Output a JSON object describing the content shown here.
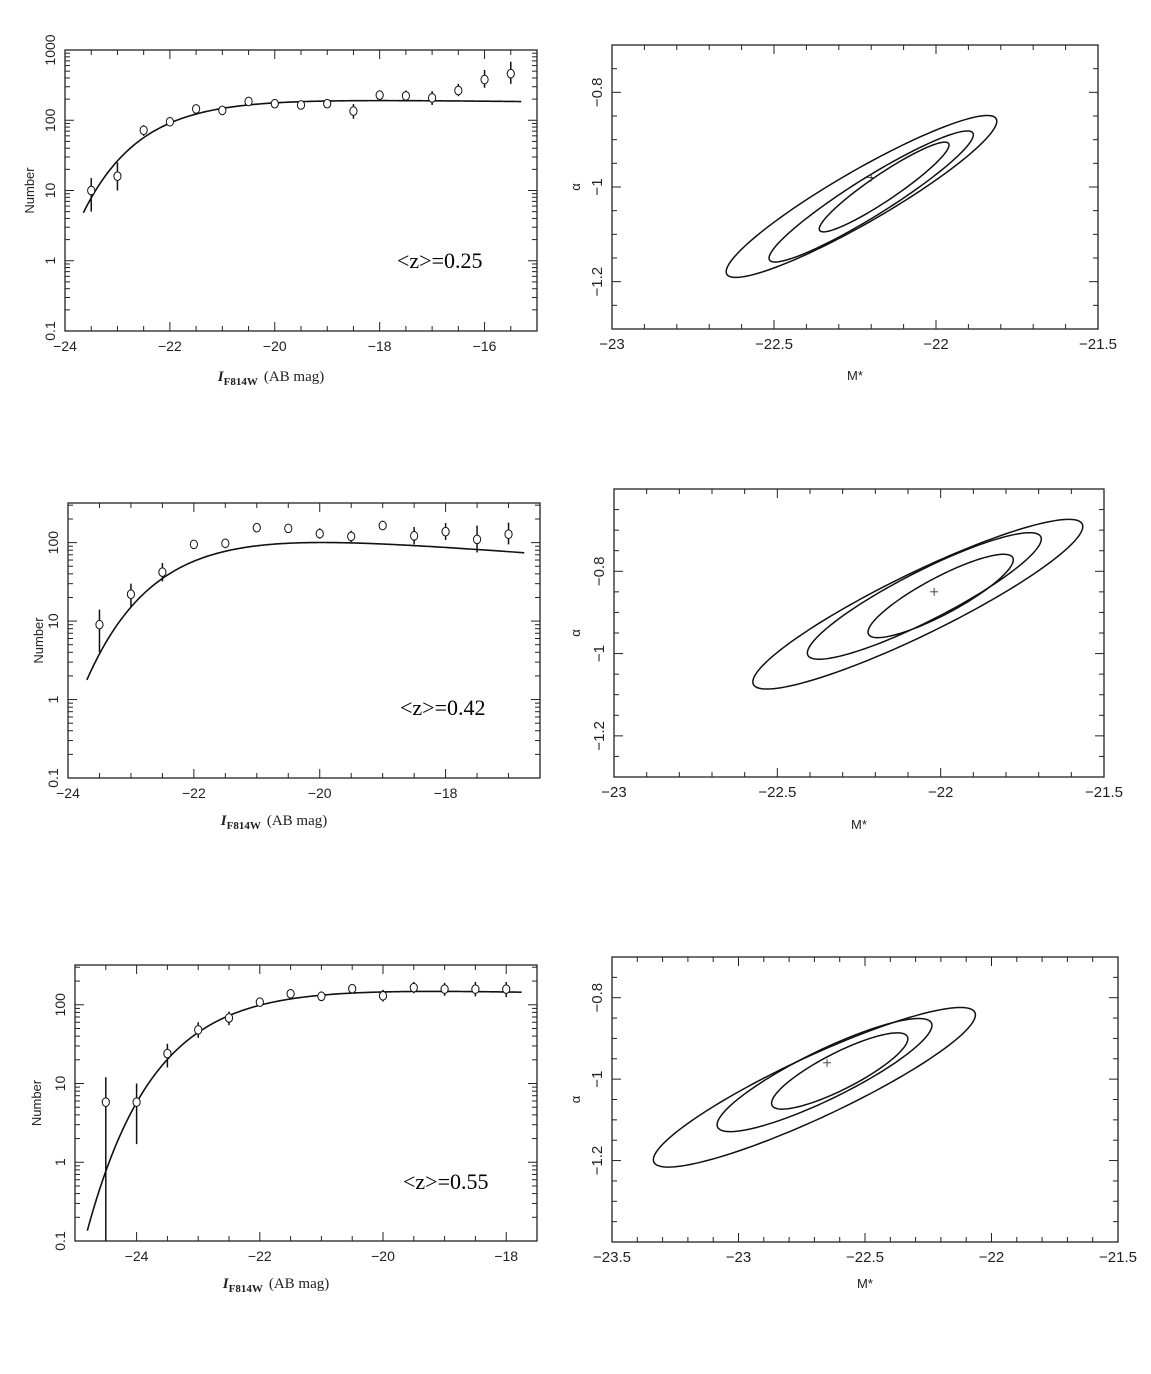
{
  "chart_data": [
    {
      "type": "scatter",
      "panel": "luminosity-function",
      "xlabel_main": "I",
      "xlabel_sub": "F814W",
      "xlabel_unit": "(AB mag)",
      "ylabel": "Number",
      "annotation": "<z>=0.25",
      "xlim": [
        -24,
        -15
      ],
      "ylim": [
        0.1,
        1000
      ],
      "y_scale": "log",
      "x_ticks": [
        -24,
        -22,
        -20,
        -18,
        -16
      ],
      "y_ticks": [
        0.1,
        1,
        10,
        100,
        1000
      ],
      "x": [
        -23.5,
        -23,
        -22.5,
        -22,
        -21.5,
        -21,
        -20.5,
        -20,
        -19.5,
        -19,
        -18.5,
        -18,
        -17.5,
        -17,
        -16.5,
        -16,
        -15.5
      ],
      "y": [
        10,
        16,
        72,
        95,
        145,
        138,
        185,
        172,
        165,
        172,
        135,
        228,
        222,
        208,
        265,
        380,
        460
      ],
      "y_err_low": [
        5,
        10,
        60,
        85,
        130,
        125,
        170,
        155,
        145,
        150,
        105,
        200,
        190,
        165,
        220,
        290,
        330
      ],
      "y_err_high": [
        15,
        25,
        85,
        110,
        165,
        155,
        205,
        195,
        190,
        200,
        170,
        265,
        265,
        260,
        330,
        520,
        680
      ],
      "fit": {
        "M_star": -22.2,
        "alpha": -0.98,
        "phi_star": 210,
        "x_range": [
          -23.65,
          -15.3
        ]
      }
    },
    {
      "type": "line",
      "panel": "confidence-contours",
      "xlabel": "M*",
      "ylabel": "α",
      "xlim": [
        -23,
        -21.5
      ],
      "ylim": [
        -1.3,
        -0.7
      ],
      "x_ticks": [
        -23,
        -22.5,
        -22,
        -21.5
      ],
      "y_ticks": [
        -0.8,
        -1,
        -1.2
      ],
      "best_fit": {
        "M_star": -22.2,
        "alpha": -0.98
      },
      "contours": [
        {
          "center": [
            -22.16,
            -1.0
          ],
          "semi_axes": [
            0.24,
            0.028
          ],
          "angle_deg": 34
        },
        {
          "center": [
            -22.2,
            -1.02
          ],
          "semi_axes": [
            0.37,
            0.04
          ],
          "angle_deg": 32
        },
        {
          "center": [
            -22.23,
            -1.02
          ],
          "semi_axes": [
            0.48,
            0.055
          ],
          "angle_deg": 30
        }
      ]
    },
    {
      "type": "scatter",
      "panel": "luminosity-function",
      "xlabel_main": "I",
      "xlabel_sub": "F814W",
      "xlabel_unit": "(AB mag)",
      "ylabel": "Number",
      "annotation": "<z>=0.42",
      "xlim": [
        -24,
        -16.5
      ],
      "ylim": [
        0.1,
        320
      ],
      "y_scale": "log",
      "x_ticks": [
        -24,
        -22,
        -20,
        -18
      ],
      "y_ticks": [
        0.1,
        1,
        10,
        100
      ],
      "x": [
        -23.5,
        -23,
        -22.5,
        -22,
        -21.5,
        -21,
        -20.5,
        -20,
        -19.5,
        -19,
        -18.5,
        -18,
        -17.5,
        -17
      ],
      "y": [
        9,
        22,
        42,
        95,
        98,
        155,
        152,
        130,
        120,
        165,
        122,
        138,
        110,
        128
      ],
      "y_err_low": [
        4,
        15,
        32,
        85,
        85,
        145,
        138,
        112,
        102,
        145,
        95,
        108,
        75,
        95
      ],
      "y_err_high": [
        14,
        30,
        55,
        105,
        112,
        170,
        168,
        152,
        142,
        190,
        158,
        178,
        165,
        180
      ],
      "fit": {
        "M_star": -22.02,
        "alpha": -0.85,
        "phi_star": 155,
        "x_range": [
          -23.7,
          -16.75
        ]
      }
    },
    {
      "type": "line",
      "panel": "confidence-contours",
      "xlabel": "M*",
      "ylabel": "α",
      "xlim": [
        -23,
        -21.5
      ],
      "ylim": [
        -1.3,
        -0.6
      ],
      "x_ticks": [
        -23,
        -22.5,
        -22,
        -21.5
      ],
      "y_ticks": [
        -0.8,
        -1,
        -1.2
      ],
      "best_fit": {
        "M_star": -22.02,
        "alpha": -0.85
      },
      "contours": [
        {
          "center": [
            -22.0,
            -0.86
          ],
          "semi_axes": [
            0.25,
            0.045
          ],
          "angle_deg": 28
        },
        {
          "center": [
            -22.05,
            -0.86
          ],
          "semi_axes": [
            0.4,
            0.06
          ],
          "angle_deg": 27
        },
        {
          "center": [
            -22.07,
            -0.88
          ],
          "semi_axes": [
            0.56,
            0.075
          ],
          "angle_deg": 26
        }
      ]
    },
    {
      "type": "scatter",
      "panel": "luminosity-function",
      "xlabel_main": "I",
      "xlabel_sub": "F814W",
      "xlabel_unit": "(AB mag)",
      "ylabel": "Number",
      "annotation": "<z>=0.55",
      "xlim": [
        -25,
        -17.5
      ],
      "ylim": [
        0.1,
        320
      ],
      "y_scale": "log",
      "x_ticks": [
        -24,
        -22,
        -20,
        -18
      ],
      "y_ticks": [
        0.1,
        1,
        10,
        100
      ],
      "x": [
        -24.5,
        -24,
        -23.5,
        -23,
        -22.5,
        -22,
        -21.5,
        -21,
        -20.5,
        -20,
        -19.5,
        -19,
        -18.5,
        -18
      ],
      "y": [
        5.8,
        5.8,
        24,
        48,
        68,
        108,
        138,
        128,
        160,
        130,
        165,
        158,
        158,
        158
      ],
      "y_err_low": [
        0.1,
        1.7,
        16,
        38,
        55,
        95,
        125,
        112,
        142,
        110,
        140,
        130,
        128,
        125
      ],
      "y_err_high": [
        12,
        10,
        32,
        60,
        82,
        122,
        152,
        148,
        182,
        155,
        195,
        190,
        195,
        195
      ],
      "fit": {
        "M_star": -22.65,
        "alpha": -0.96,
        "phi_star": 175,
        "x_range": [
          -24.8,
          -17.75
        ]
      }
    },
    {
      "type": "line",
      "panel": "confidence-contours",
      "xlabel": "M*",
      "ylabel": "α",
      "xlim": [
        -23.5,
        -21.5
      ],
      "ylim": [
        -1.4,
        -0.7
      ],
      "x_ticks": [
        -23.5,
        -23,
        -22.5,
        -22,
        -21.5
      ],
      "y_ticks": [
        -0.8,
        -1,
        -1.2
      ],
      "best_fit": {
        "M_star": -22.65,
        "alpha": -0.96
      },
      "contours": [
        {
          "center": [
            -22.6,
            -0.98
          ],
          "semi_axes": [
            0.3,
            0.045
          ],
          "angle_deg": 27
        },
        {
          "center": [
            -22.66,
            -0.99
          ],
          "semi_axes": [
            0.47,
            0.06
          ],
          "angle_deg": 26
        },
        {
          "center": [
            -22.7,
            -1.02
          ],
          "semi_axes": [
            0.7,
            0.075
          ],
          "angle_deg": 25
        }
      ]
    }
  ]
}
